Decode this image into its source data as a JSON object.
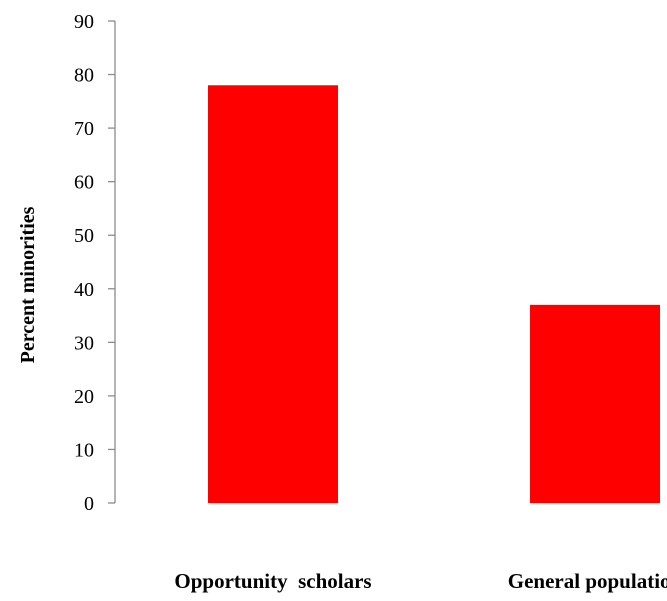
{
  "chart_data": {
    "type": "bar",
    "categories": [
      "Opportunity  scholars",
      "General population"
    ],
    "values": [
      78,
      37
    ],
    "title": "",
    "xlabel": "",
    "ylabel": "Percent minorities",
    "ylim": [
      0,
      90
    ],
    "yticks": [
      0,
      10,
      20,
      30,
      40,
      50,
      60,
      70,
      80,
      90
    ],
    "grid": false,
    "bar_color": "#ff0000",
    "axis_color": "#8c8c8c"
  }
}
